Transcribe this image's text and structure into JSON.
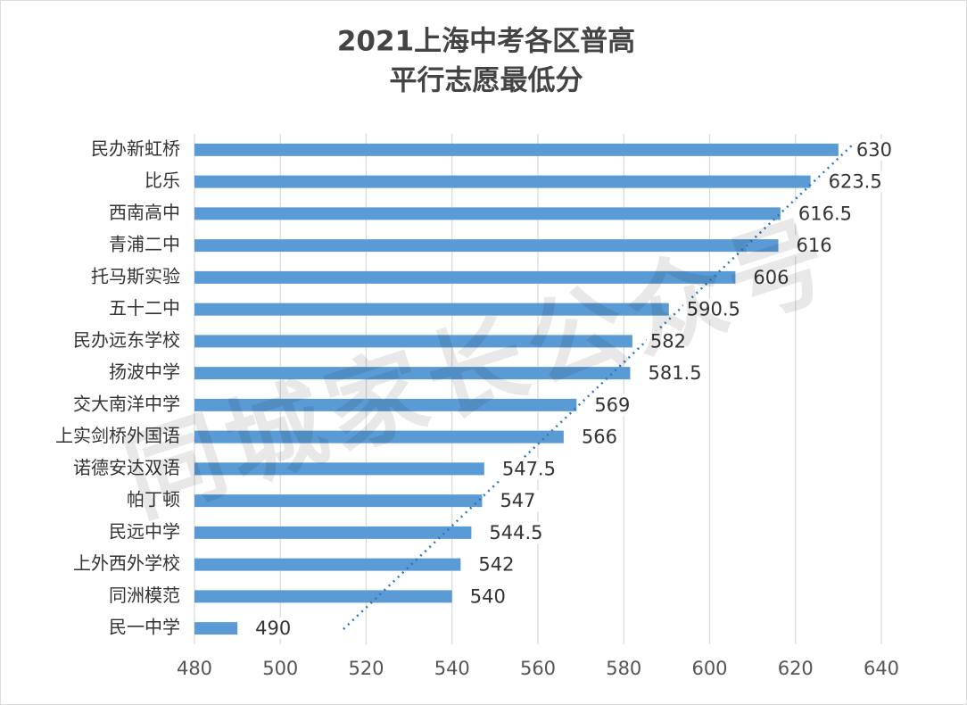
{
  "chart_data": {
    "type": "bar",
    "orientation": "horizontal",
    "title": [
      "2021上海中考各区普高",
      "平行志愿最低分"
    ],
    "categories": [
      "民办新虹桥",
      "比乐",
      "西南高中",
      "青浦二中",
      "托马斯实验",
      "五十二中",
      "民办远东学校",
      "扬波中学",
      "交大南洋中学",
      "上实剑桥外国语",
      "诺德安达双语",
      "帕丁顿",
      "民远中学",
      "上外西外学校",
      "同洲模范",
      "民一中学"
    ],
    "values": [
      630,
      623.5,
      616.5,
      616,
      606,
      590.5,
      582,
      581.5,
      569,
      566,
      547.5,
      547,
      544.5,
      542,
      540,
      490
    ],
    "color": "#5b9bd5",
    "xlim": [
      480,
      640
    ],
    "xticks": [
      480,
      500,
      520,
      540,
      560,
      580,
      600,
      620,
      640
    ],
    "grid": true,
    "watermark": "同城家长公众号"
  }
}
